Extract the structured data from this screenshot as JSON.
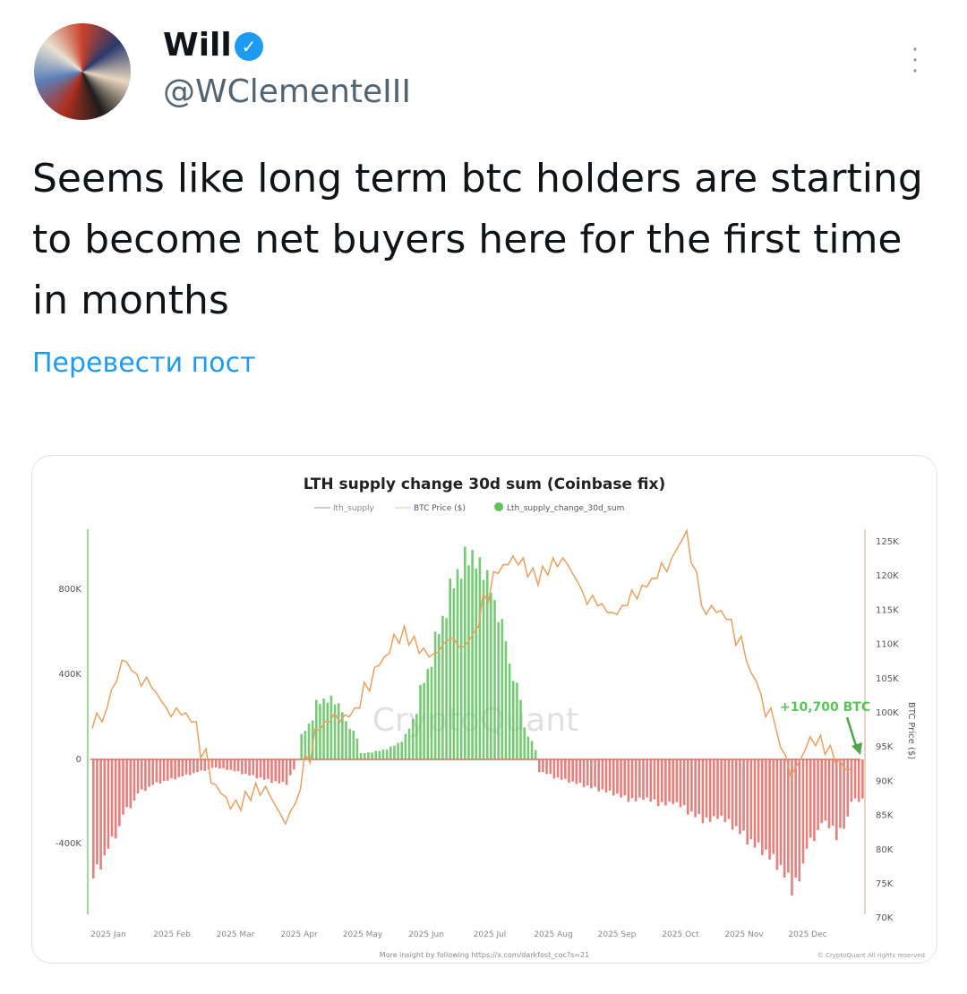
{
  "author": {
    "name": "Will",
    "handle": "@WClementeIII",
    "verified": true
  },
  "tweet": {
    "text": "Seems like long term btc holders are starting to become net buyers here for the first time in months",
    "translate_label": "Перевести пост"
  },
  "icons": {
    "more": "more-vertical-icon",
    "badge": "verified-badge-icon"
  },
  "chart_data": {
    "type": "bar",
    "title": "LTH supply change 30d sum (Coinbase fix)",
    "legend": [
      "lth_supply",
      "BTC Price ($)",
      "Lth_supply_change_30d_sum"
    ],
    "legend_position": "top",
    "left_ticks": [
      "800K",
      "400K",
      "0",
      "-400K"
    ],
    "right_ticks": [
      "125K",
      "120K",
      "115K",
      "110K",
      "105K",
      "100K",
      "95K",
      "90K",
      "85K",
      "80K",
      "75K",
      "70K"
    ],
    "ylabel_right": "BTC Price ($)",
    "ylim_left": [
      -700000,
      1050000
    ],
    "ylim_right": [
      70000,
      127000
    ],
    "x_ticks": [
      "2025 Jan",
      "2025 Feb",
      "2025 Mar",
      "2025 Apr",
      "2025 May",
      "2025 Jun",
      "2025 Jul",
      "2025 Aug",
      "2025 Sep",
      "2025 Oct",
      "2025 Nov",
      "2025 Dec"
    ],
    "annotation": "+10,700 BTC",
    "watermark": "CryptoQuant",
    "footer": "More insight by following https://x.com/darkfost_coc?s=21",
    "copyright": "© CryptoQuant All rights reserved",
    "colors": {
      "positive": "#5cc25a",
      "negative": "#e06a66",
      "price": "#e8a060",
      "lth_supply": "#999999"
    },
    "series": [
      {
        "name": "Lth_supply_change_30d_sum",
        "unit": "K BTC",
        "values": [
          -560,
          -420,
          -260,
          -160,
          -120,
          -100,
          -80,
          -60,
          -40,
          -50,
          -70,
          -90,
          -110,
          -120,
          120,
          280,
          300,
          180,
          30,
          40,
          60,
          120,
          350,
          600,
          850,
          1000,
          950,
          750,
          450,
          150,
          -60,
          -90,
          -110,
          -130,
          -150,
          -170,
          -200,
          -190,
          -220,
          -210,
          -260,
          -300,
          -280,
          -330,
          -400,
          -450,
          -520,
          -640,
          -420,
          -300,
          -380,
          -200
        ]
      },
      {
        "name": "BTC Price ($)",
        "unit": "K USD",
        "values": [
          94,
          97,
          104,
          102,
          100,
          97,
          96,
          95,
          86,
          84,
          82,
          86,
          84,
          80,
          85,
          94,
          95,
          96,
          97,
          103,
          105,
          109,
          105,
          105,
          107,
          106,
          109,
          117,
          118,
          119,
          115,
          119,
          118,
          114,
          112,
          111,
          112,
          115,
          116,
          119,
          123,
          112,
          111,
          110,
          104,
          99,
          94,
          87,
          91,
          93,
          89,
          88
        ]
      }
    ]
  }
}
